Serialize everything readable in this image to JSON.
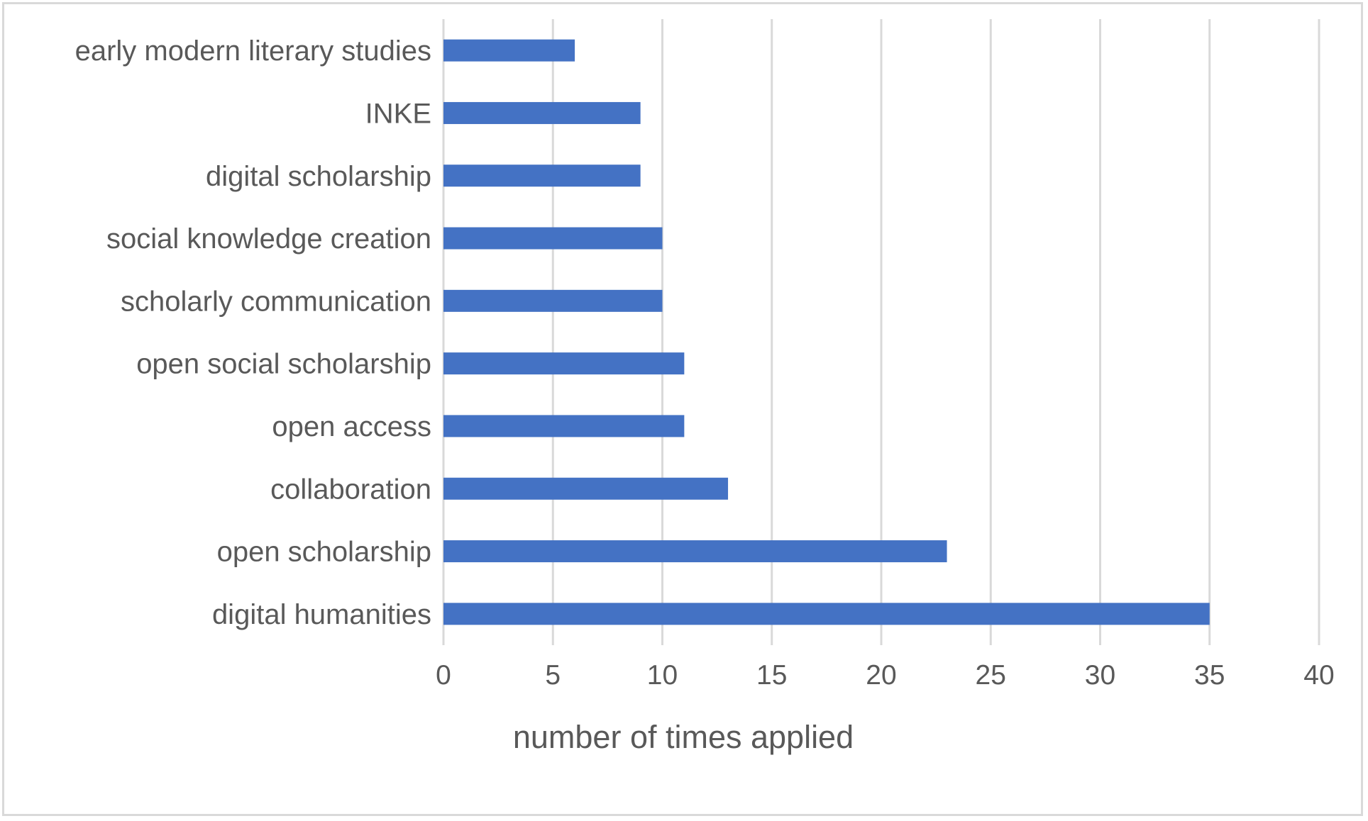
{
  "chart_data": {
    "type": "bar",
    "orientation": "horizontal",
    "categories": [
      "early modern literary studies",
      "INKE",
      "digital scholarship",
      "social knowledge creation",
      "scholarly communication",
      "open social scholarship",
      "open access",
      "collaboration",
      "open scholarship",
      "digital humanities"
    ],
    "values": [
      6,
      9,
      9,
      10,
      10,
      11,
      11,
      13,
      23,
      35
    ],
    "xlabel": "number of times applied",
    "ylabel": "",
    "xlim": [
      0,
      40
    ],
    "xticks": [
      0,
      5,
      10,
      15,
      20,
      25,
      30,
      35,
      40
    ],
    "grid": "vertical",
    "legend": "none",
    "bar_color": "#4472c4",
    "grid_color": "#d9d9d9",
    "text_color": "#595959"
  }
}
